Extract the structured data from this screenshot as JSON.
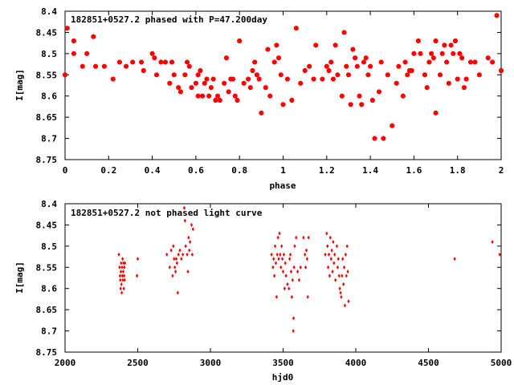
{
  "chart_data": [
    {
      "type": "scatter",
      "title": "182851+0527.2 phased with P=47.200day",
      "xlabel": "phase",
      "ylabel": "I[mag]",
      "xlim": [
        0,
        2
      ],
      "ylim": [
        8.4,
        8.75
      ],
      "y_inverted": true,
      "xticks": [
        "0",
        "0.2",
        "0.4",
        "0.6",
        "0.8",
        "1",
        "1.2",
        "1.4",
        "1.6",
        "1.8",
        "2"
      ],
      "yticks": [
        "8.4",
        "8.45",
        "8.5",
        "8.55",
        "8.6",
        "8.65",
        "8.7",
        "8.75"
      ],
      "marker_color": "#ff0000",
      "marker": "star",
      "points": [
        [
          0.0,
          8.55
        ],
        [
          0.01,
          8.44
        ],
        [
          0.04,
          8.47
        ],
        [
          0.04,
          8.5
        ],
        [
          0.08,
          8.53
        ],
        [
          0.1,
          8.5
        ],
        [
          0.13,
          8.46
        ],
        [
          0.14,
          8.53
        ],
        [
          0.18,
          8.53
        ],
        [
          0.22,
          8.56
        ],
        [
          0.25,
          8.52
        ],
        [
          0.28,
          8.53
        ],
        [
          0.31,
          8.52
        ],
        [
          0.35,
          8.52
        ],
        [
          0.36,
          8.54
        ],
        [
          0.4,
          8.5
        ],
        [
          0.41,
          8.51
        ],
        [
          0.42,
          8.55
        ],
        [
          0.44,
          8.52
        ],
        [
          0.46,
          8.52
        ],
        [
          0.48,
          8.57
        ],
        [
          0.49,
          8.52
        ],
        [
          0.5,
          8.55
        ],
        [
          0.52,
          8.58
        ],
        [
          0.53,
          8.59
        ],
        [
          0.55,
          8.55
        ],
        [
          0.56,
          8.52
        ],
        [
          0.57,
          8.53
        ],
        [
          0.58,
          8.58
        ],
        [
          0.6,
          8.57
        ],
        [
          0.61,
          8.55
        ],
        [
          0.61,
          8.6
        ],
        [
          0.62,
          8.54
        ],
        [
          0.63,
          8.6
        ],
        [
          0.64,
          8.57
        ],
        [
          0.65,
          8.56
        ],
        [
          0.66,
          8.6
        ],
        [
          0.67,
          8.58
        ],
        [
          0.68,
          8.56
        ],
        [
          0.69,
          8.61
        ],
        [
          0.7,
          8.6
        ],
        [
          0.71,
          8.61
        ],
        [
          0.73,
          8.57
        ],
        [
          0.74,
          8.51
        ],
        [
          0.75,
          8.59
        ],
        [
          0.76,
          8.56
        ],
        [
          0.77,
          8.56
        ],
        [
          0.78,
          8.6
        ],
        [
          0.79,
          8.61
        ],
        [
          0.8,
          8.47
        ],
        [
          0.82,
          8.57
        ],
        [
          0.84,
          8.56
        ],
        [
          0.85,
          8.58
        ],
        [
          0.86,
          8.54
        ],
        [
          0.87,
          8.52
        ],
        [
          0.88,
          8.55
        ],
        [
          0.89,
          8.56
        ],
        [
          0.9,
          8.64
        ],
        [
          0.92,
          8.58
        ],
        [
          0.93,
          8.49
        ],
        [
          0.94,
          8.6
        ],
        [
          0.96,
          8.52
        ],
        [
          0.97,
          8.48
        ],
        [
          0.98,
          8.51
        ],
        [
          0.99,
          8.55
        ],
        [
          1.0,
          8.62
        ],
        [
          1.02,
          8.56
        ],
        [
          1.04,
          8.61
        ],
        [
          1.06,
          8.44
        ],
        [
          1.08,
          8.57
        ],
        [
          1.1,
          8.54
        ],
        [
          1.12,
          8.53
        ],
        [
          1.14,
          8.56
        ],
        [
          1.15,
          8.48
        ],
        [
          1.18,
          8.56
        ],
        [
          1.2,
          8.53
        ],
        [
          1.21,
          8.54
        ],
        [
          1.22,
          8.52
        ],
        [
          1.23,
          8.56
        ],
        [
          1.24,
          8.48
        ],
        [
          1.25,
          8.55
        ],
        [
          1.27,
          8.6
        ],
        [
          1.28,
          8.45
        ],
        [
          1.29,
          8.53
        ],
        [
          1.3,
          8.55
        ],
        [
          1.31,
          8.62
        ],
        [
          1.32,
          8.49
        ],
        [
          1.33,
          8.51
        ],
        [
          1.34,
          8.53
        ],
        [
          1.35,
          8.6
        ],
        [
          1.36,
          8.62
        ],
        [
          1.37,
          8.52
        ],
        [
          1.38,
          8.51
        ],
        [
          1.39,
          8.55
        ],
        [
          1.4,
          8.53
        ],
        [
          1.41,
          8.61
        ],
        [
          1.42,
          8.7
        ],
        [
          1.44,
          8.59
        ],
        [
          1.45,
          8.52
        ],
        [
          1.46,
          8.7
        ],
        [
          1.48,
          8.55
        ],
        [
          1.5,
          8.67
        ],
        [
          1.52,
          8.57
        ],
        [
          1.53,
          8.53
        ],
        [
          1.55,
          8.6
        ],
        [
          1.56,
          8.52
        ],
        [
          1.57,
          8.55
        ],
        [
          1.58,
          8.54
        ],
        [
          1.59,
          8.54
        ],
        [
          1.6,
          8.5
        ],
        [
          1.62,
          8.47
        ],
        [
          1.63,
          8.5
        ],
        [
          1.65,
          8.55
        ],
        [
          1.66,
          8.58
        ],
        [
          1.67,
          8.52
        ],
        [
          1.68,
          8.5
        ],
        [
          1.69,
          8.51
        ],
        [
          1.7,
          8.47
        ],
        [
          1.7,
          8.64
        ],
        [
          1.72,
          8.55
        ],
        [
          1.73,
          8.5
        ],
        [
          1.74,
          8.48
        ],
        [
          1.75,
          8.52
        ],
        [
          1.76,
          8.57
        ],
        [
          1.77,
          8.48
        ],
        [
          1.78,
          8.5
        ],
        [
          1.79,
          8.47
        ],
        [
          1.8,
          8.56
        ],
        [
          1.81,
          8.5
        ],
        [
          1.82,
          8.51
        ],
        [
          1.83,
          8.58
        ],
        [
          1.84,
          8.56
        ],
        [
          1.86,
          8.52
        ],
        [
          1.88,
          8.52
        ],
        [
          1.9,
          8.55
        ],
        [
          1.94,
          8.51
        ],
        [
          1.96,
          8.52
        ],
        [
          1.98,
          8.41
        ],
        [
          2.0,
          8.54
        ]
      ]
    },
    {
      "type": "scatter",
      "title": "182851+0527.2 not phased light curve",
      "xlabel": "hjd0",
      "ylabel": "I[mag]",
      "xlim": [
        2000,
        5000
      ],
      "ylim": [
        8.4,
        8.75
      ],
      "y_inverted": true,
      "xticks": [
        "2000",
        "2500",
        "3000",
        "3500",
        "4000",
        "4500",
        "5000"
      ],
      "yticks": [
        "8.4",
        "8.45",
        "8.5",
        "8.55",
        "8.6",
        "8.65",
        "8.7",
        "8.75"
      ],
      "marker_color": "#ff0000",
      "marker": "diamond",
      "points": [
        [
          2370,
          8.52
        ],
        [
          2375,
          8.55
        ],
        [
          2378,
          8.57
        ],
        [
          2380,
          8.58
        ],
        [
          2382,
          8.6
        ],
        [
          2384,
          8.56
        ],
        [
          2386,
          8.54
        ],
        [
          2388,
          8.59
        ],
        [
          2390,
          8.61
        ],
        [
          2392,
          8.55
        ],
        [
          2394,
          8.57
        ],
        [
          2396,
          8.53
        ],
        [
          2398,
          8.58
        ],
        [
          2400,
          8.56
        ],
        [
          2402,
          8.54
        ],
        [
          2404,
          8.6
        ],
        [
          2406,
          8.57
        ],
        [
          2408,
          8.55
        ],
        [
          2410,
          8.58
        ],
        [
          2412,
          8.54
        ],
        [
          2495,
          8.57
        ],
        [
          2500,
          8.53
        ],
        [
          2700,
          8.52
        ],
        [
          2720,
          8.55
        ],
        [
          2730,
          8.51
        ],
        [
          2740,
          8.57
        ],
        [
          2745,
          8.5
        ],
        [
          2750,
          8.53
        ],
        [
          2755,
          8.55
        ],
        [
          2760,
          8.56
        ],
        [
          2765,
          8.53
        ],
        [
          2770,
          8.54
        ],
        [
          2775,
          8.61
        ],
        [
          2780,
          8.52
        ],
        [
          2790,
          8.51
        ],
        [
          2800,
          8.53
        ],
        [
          2810,
          8.52
        ],
        [
          2820,
          8.41
        ],
        [
          2825,
          8.44
        ],
        [
          2830,
          8.5
        ],
        [
          2840,
          8.52
        ],
        [
          2845,
          8.56
        ],
        [
          2850,
          8.48
        ],
        [
          2855,
          8.51
        ],
        [
          2860,
          8.49
        ],
        [
          2870,
          8.45
        ],
        [
          2875,
          8.52
        ],
        [
          2880,
          8.46
        ],
        [
          3420,
          8.52
        ],
        [
          3430,
          8.55
        ],
        [
          3435,
          8.53
        ],
        [
          3440,
          8.57
        ],
        [
          3445,
          8.5
        ],
        [
          3450,
          8.54
        ],
        [
          3455,
          8.62
        ],
        [
          3460,
          8.52
        ],
        [
          3465,
          8.48
        ],
        [
          3470,
          8.53
        ],
        [
          3475,
          8.47
        ],
        [
          3480,
          8.52
        ],
        [
          3485,
          8.55
        ],
        [
          3490,
          8.5
        ],
        [
          3495,
          8.53
        ],
        [
          3500,
          8.56
        ],
        [
          3505,
          8.52
        ],
        [
          3510,
          8.6
        ],
        [
          3515,
          8.54
        ],
        [
          3520,
          8.57
        ],
        [
          3530,
          8.59
        ],
        [
          3540,
          8.6
        ],
        [
          3545,
          8.53
        ],
        [
          3550,
          8.52
        ],
        [
          3555,
          8.56
        ],
        [
          3560,
          8.62
        ],
        [
          3565,
          8.58
        ],
        [
          3570,
          8.7
        ],
        [
          3572,
          8.67
        ],
        [
          3575,
          8.55
        ],
        [
          3580,
          8.5
        ],
        [
          3590,
          8.48
        ],
        [
          3600,
          8.56
        ],
        [
          3610,
          8.58
        ],
        [
          3620,
          8.55
        ],
        [
          3640,
          8.48
        ],
        [
          3650,
          8.52
        ],
        [
          3655,
          8.55
        ],
        [
          3660,
          8.51
        ],
        [
          3665,
          8.53
        ],
        [
          3670,
          8.62
        ],
        [
          3675,
          8.48
        ],
        [
          3790,
          8.52
        ],
        [
          3800,
          8.47
        ],
        [
          3805,
          8.5
        ],
        [
          3810,
          8.55
        ],
        [
          3815,
          8.52
        ],
        [
          3820,
          8.57
        ],
        [
          3825,
          8.48
        ],
        [
          3830,
          8.53
        ],
        [
          3835,
          8.51
        ],
        [
          3840,
          8.56
        ],
        [
          3845,
          8.49
        ],
        [
          3850,
          8.54
        ],
        [
          3855,
          8.52
        ],
        [
          3860,
          8.58
        ],
        [
          3870,
          8.5
        ],
        [
          3875,
          8.55
        ],
        [
          3880,
          8.53
        ],
        [
          3885,
          8.57
        ],
        [
          3890,
          8.6
        ],
        [
          3895,
          8.61
        ],
        [
          3900,
          8.62
        ],
        [
          3905,
          8.57
        ],
        [
          3910,
          8.53
        ],
        [
          3915,
          8.59
        ],
        [
          3920,
          8.55
        ],
        [
          3925,
          8.64
        ],
        [
          3930,
          8.52
        ],
        [
          3935,
          8.57
        ],
        [
          3940,
          8.5
        ],
        [
          3945,
          8.56
        ],
        [
          3950,
          8.63
        ],
        [
          4680,
          8.53
        ],
        [
          4940,
          8.49
        ],
        [
          4990,
          8.52
        ]
      ]
    }
  ]
}
